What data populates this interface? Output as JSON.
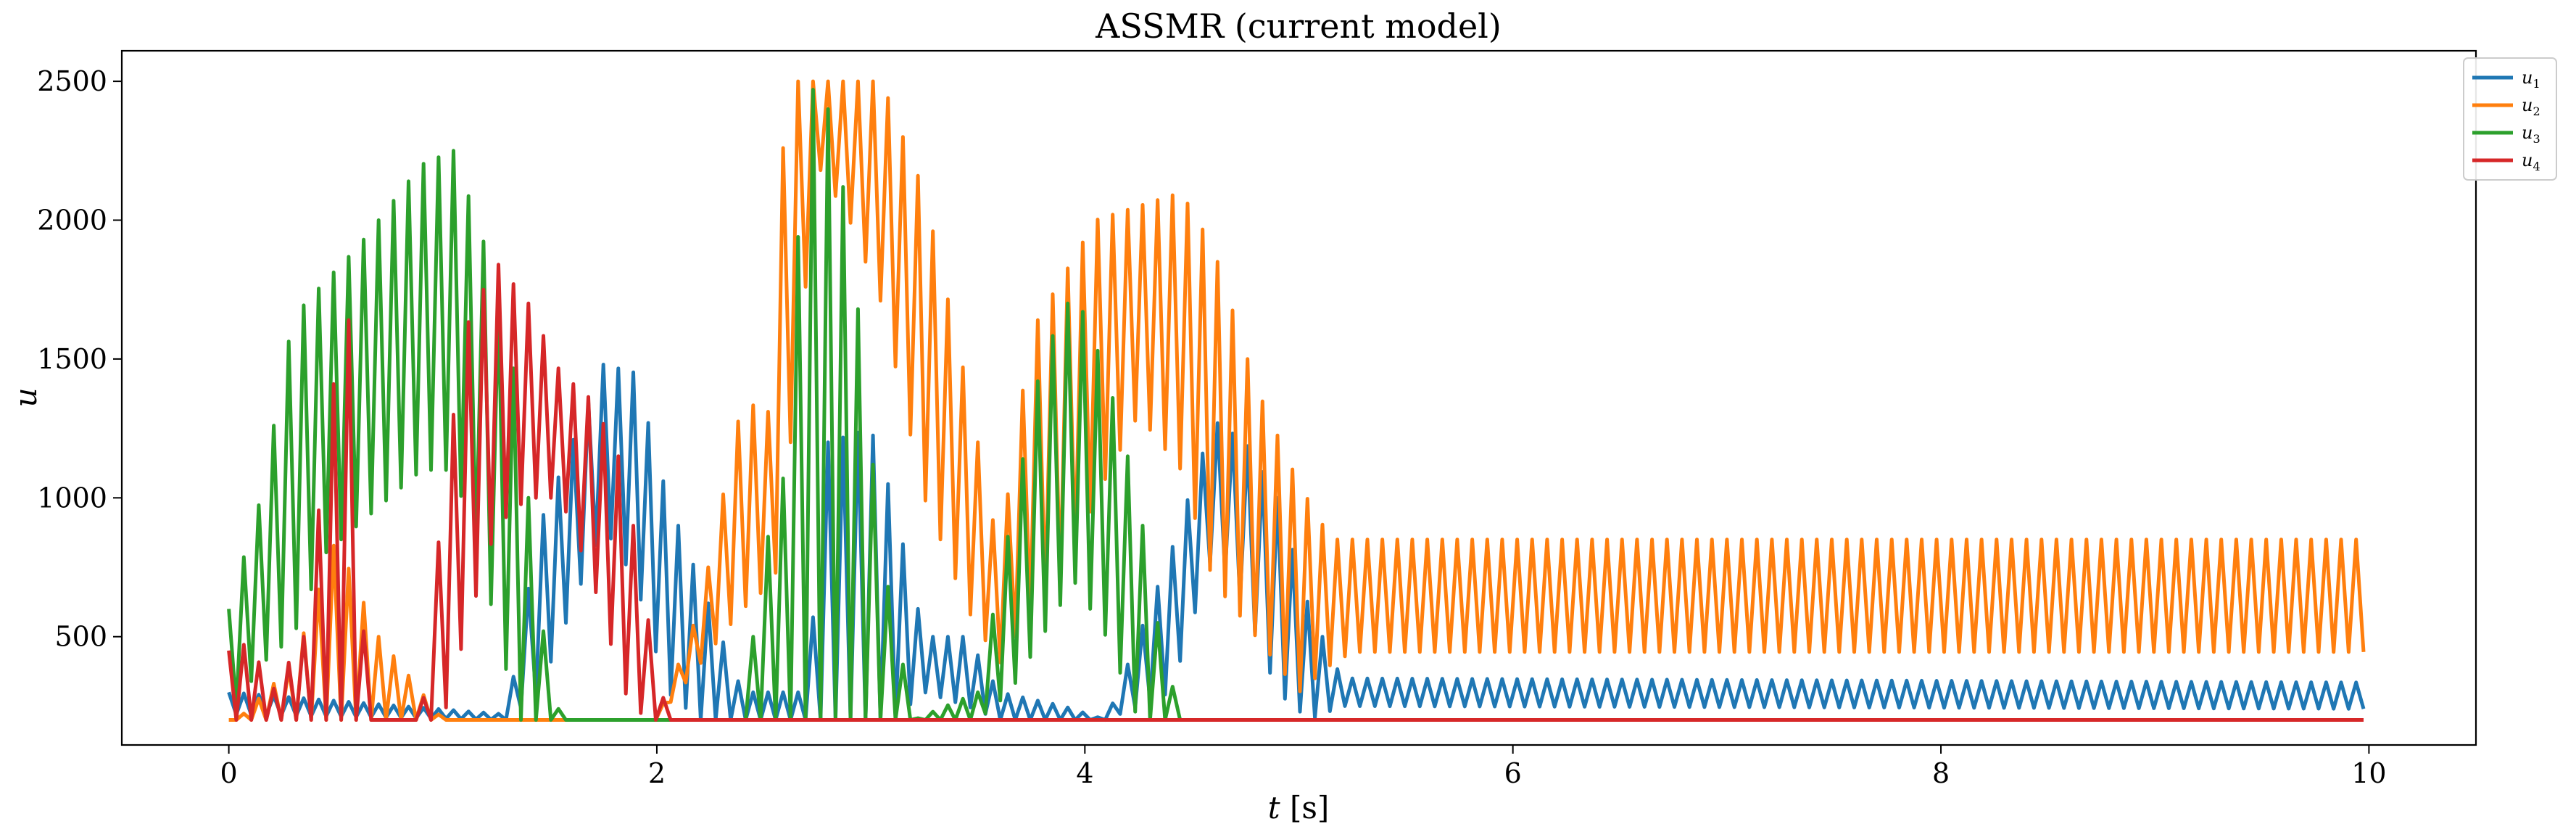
{
  "chart_data": {
    "type": "line",
    "title": "ASSMR (current model)",
    "xlabel": "t [s]",
    "ylabel": "u",
    "xlim": [
      -0.5,
      10.5
    ],
    "ylim": [
      110,
      2610
    ],
    "xticks": [
      0,
      2,
      4,
      6,
      8,
      10
    ],
    "xtick_labels": [
      "0",
      "2",
      "4",
      "6",
      "8",
      "10"
    ],
    "yticks": [
      500,
      1000,
      1500,
      2000,
      2500
    ],
    "ytick_labels": [
      "500",
      "1000",
      "1500",
      "2000",
      "2500"
    ],
    "grid": false,
    "legend_position": "top-right",
    "series": [
      {
        "name": "u1",
        "color": "#1f77b4",
        "envelope": [
          [
            0.0,
            220,
            300
          ],
          [
            1.3,
            200,
            220
          ],
          [
            1.45,
            300,
            900
          ],
          [
            1.75,
            900,
            1480
          ],
          [
            1.9,
            700,
            1450
          ],
          [
            2.05,
            300,
            1000
          ],
          [
            2.2,
            200,
            700
          ],
          [
            2.4,
            200,
            300
          ],
          [
            2.7,
            200,
            300
          ],
          [
            2.8,
            200,
            1200
          ],
          [
            3.0,
            200,
            1250
          ],
          [
            3.1,
            200,
            1000
          ],
          [
            3.25,
            300,
            500
          ],
          [
            3.45,
            250,
            500
          ],
          [
            3.6,
            200,
            300
          ],
          [
            3.9,
            200,
            250
          ],
          [
            4.1,
            200,
            200
          ],
          [
            4.4,
            300,
            800
          ],
          [
            4.6,
            800,
            1280
          ],
          [
            4.75,
            600,
            1200
          ],
          [
            4.9,
            300,
            1000
          ],
          [
            5.05,
            200,
            600
          ],
          [
            5.2,
            250,
            350
          ],
          [
            10.0,
            240,
            335
          ]
        ]
      },
      {
        "name": "u2",
        "color": "#ff7f0e",
        "envelope": [
          [
            0.0,
            200,
            200
          ],
          [
            0.02,
            200,
            2500
          ],
          [
            0.04,
            200,
            200
          ],
          [
            0.3,
            200,
            400
          ],
          [
            0.5,
            200,
            850
          ],
          [
            0.7,
            200,
            500
          ],
          [
            1.0,
            200,
            200
          ],
          [
            2.0,
            200,
            200
          ],
          [
            2.2,
            400,
            600
          ],
          [
            2.4,
            600,
            1350
          ],
          [
            2.55,
            700,
            1300
          ],
          [
            2.6,
            1000,
            2500
          ],
          [
            2.75,
            2200,
            2500
          ],
          [
            2.9,
            2000,
            2500
          ],
          [
            3.05,
            1700,
            2500
          ],
          [
            3.25,
            1000,
            2100
          ],
          [
            3.45,
            600,
            1400
          ],
          [
            3.6,
            400,
            800
          ],
          [
            3.75,
            600,
            1600
          ],
          [
            3.9,
            700,
            1800
          ],
          [
            4.05,
            1000,
            2000
          ],
          [
            4.25,
            1300,
            2050
          ],
          [
            4.45,
            1100,
            2100
          ],
          [
            4.6,
            700,
            1900
          ],
          [
            4.8,
            500,
            1400
          ],
          [
            5.0,
            300,
            1050
          ],
          [
            5.15,
            400,
            850
          ],
          [
            5.25,
            445,
            850
          ],
          [
            10.0,
            445,
            850
          ]
        ]
      },
      {
        "name": "u3",
        "color": "#2ca02c",
        "envelope": [
          [
            0.0,
            200,
            600
          ],
          [
            0.15,
            400,
            1000
          ],
          [
            0.3,
            500,
            1650
          ],
          [
            0.45,
            800,
            1780
          ],
          [
            0.6,
            900,
            1900
          ],
          [
            0.75,
            1000,
            2050
          ],
          [
            0.9,
            1100,
            2200
          ],
          [
            1.05,
            1100,
            2250
          ],
          [
            1.2,
            700,
            1900
          ],
          [
            1.35,
            200,
            1400
          ],
          [
            1.45,
            200,
            600
          ],
          [
            1.55,
            200,
            200
          ],
          [
            2.4,
            200,
            200
          ],
          [
            2.5,
            200,
            800
          ],
          [
            2.6,
            200,
            1100
          ],
          [
            2.7,
            200,
            2500
          ],
          [
            2.8,
            200,
            2400
          ],
          [
            2.9,
            200,
            2000
          ],
          [
            3.05,
            200,
            800
          ],
          [
            3.2,
            200,
            200
          ],
          [
            3.5,
            200,
            300
          ],
          [
            3.65,
            300,
            900
          ],
          [
            3.8,
            500,
            1500
          ],
          [
            3.95,
            700,
            1750
          ],
          [
            4.1,
            500,
            1450
          ],
          [
            4.25,
            200,
            1000
          ],
          [
            4.35,
            200,
            500
          ],
          [
            4.45,
            200,
            200
          ],
          [
            10.0,
            200,
            200
          ]
        ]
      },
      {
        "name": "u4",
        "color": "#d62728",
        "envelope": [
          [
            0.0,
            200,
            450
          ],
          [
            0.1,
            200,
            480
          ],
          [
            0.2,
            200,
            300
          ],
          [
            0.35,
            200,
            500
          ],
          [
            0.55,
            200,
            1800
          ],
          [
            0.65,
            200,
            200
          ],
          [
            0.9,
            200,
            200
          ],
          [
            1.0,
            200,
            1000
          ],
          [
            1.1,
            500,
            1600
          ],
          [
            1.25,
            900,
            1850
          ],
          [
            1.4,
            1000,
            1700
          ],
          [
            1.55,
            1000,
            1450
          ],
          [
            1.7,
            700,
            1350
          ],
          [
            1.85,
            300,
            1100
          ],
          [
            1.95,
            200,
            600
          ],
          [
            2.05,
            200,
            200
          ],
          [
            10.0,
            200,
            200
          ]
        ]
      }
    ]
  },
  "legend": {
    "entries": [
      {
        "main": "u",
        "sub": "1"
      },
      {
        "main": "u",
        "sub": "2"
      },
      {
        "main": "u",
        "sub": "3"
      },
      {
        "main": "u",
        "sub": "4"
      }
    ]
  }
}
